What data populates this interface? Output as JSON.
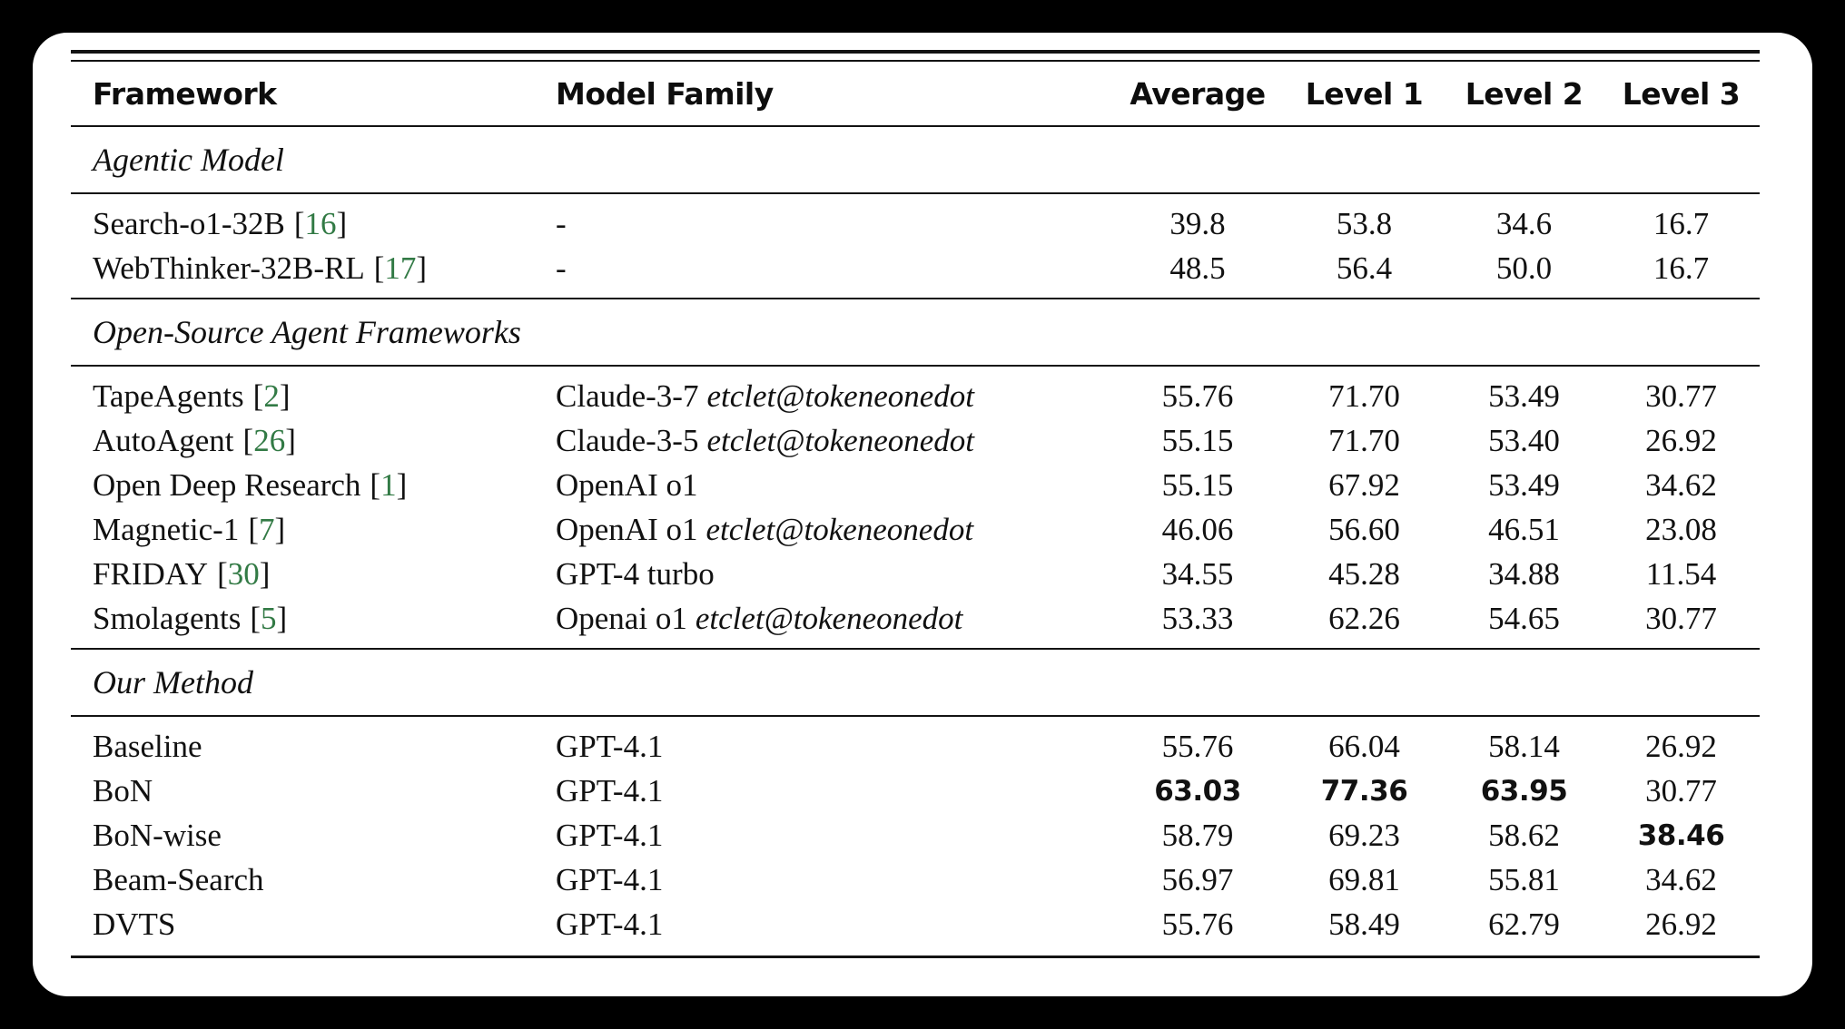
{
  "page": {
    "background_color": "#000000",
    "card_color": "#ffffff",
    "text_color": "#111111",
    "citation_color": "#327a45"
  },
  "table": {
    "headers": [
      "Framework",
      "Model Family",
      "Average",
      "Level 1",
      "Level 2",
      "Level 3"
    ],
    "sections": [
      {
        "title": "Agentic Model",
        "rows": [
          {
            "framework": "Search-o1-32B",
            "cite": "16",
            "model": "-",
            "values": [
              "39.8",
              "53.8",
              "34.6",
              "16.7"
            ],
            "bold": []
          },
          {
            "framework": "WebThinker-32B-RL",
            "cite": "17",
            "model": "-",
            "values": [
              "48.5",
              "56.4",
              "50.0",
              "16.7"
            ],
            "bold": []
          }
        ]
      },
      {
        "title": "Open-Source Agent Frameworks",
        "rows": [
          {
            "framework": "TapeAgents",
            "cite": "2",
            "model": "Claude-3-7",
            "model_suffix": "etclet@tokeneonedot",
            "values": [
              "55.76",
              "71.70",
              "53.49",
              "30.77"
            ],
            "bold": []
          },
          {
            "framework": "AutoAgent",
            "cite": "26",
            "model": "Claude-3-5",
            "model_suffix": "etclet@tokeneonedot",
            "values": [
              "55.15",
              "71.70",
              "53.40",
              "26.92"
            ],
            "bold": []
          },
          {
            "framework": "Open Deep Research",
            "cite": "1",
            "model": "OpenAI o1",
            "values": [
              "55.15",
              "67.92",
              "53.49",
              "34.62"
            ],
            "bold": []
          },
          {
            "framework": "Magnetic-1",
            "cite": "7",
            "model": "OpenAI o1",
            "model_suffix": "etclet@tokeneonedot",
            "values": [
              "46.06",
              "56.60",
              "46.51",
              "23.08"
            ],
            "bold": []
          },
          {
            "framework": "FRIDAY",
            "cite": "30",
            "model": "GPT-4 turbo",
            "values": [
              "34.55",
              "45.28",
              "34.88",
              "11.54"
            ],
            "bold": []
          },
          {
            "framework": "Smolagents",
            "cite": "5",
            "model": "Openai o1",
            "model_suffix": "etclet@tokeneonedot",
            "values": [
              "53.33",
              "62.26",
              "54.65",
              "30.77"
            ],
            "bold": []
          }
        ]
      },
      {
        "title": "Our Method",
        "rows": [
          {
            "framework": "Baseline",
            "model": "GPT-4.1",
            "values": [
              "55.76",
              "66.04",
              "58.14",
              "26.92"
            ],
            "bold": []
          },
          {
            "framework": "BoN",
            "model": "GPT-4.1",
            "values": [
              "63.03",
              "77.36",
              "63.95",
              "30.77"
            ],
            "bold": [
              0,
              1,
              2
            ]
          },
          {
            "framework": "BoN-wise",
            "model": "GPT-4.1",
            "values": [
              "58.79",
              "69.23",
              "58.62",
              "38.46"
            ],
            "bold": [
              3
            ]
          },
          {
            "framework": "Beam-Search",
            "model": "GPT-4.1",
            "values": [
              "56.97",
              "69.81",
              "55.81",
              "34.62"
            ],
            "bold": []
          },
          {
            "framework": "DVTS",
            "model": "GPT-4.1",
            "values": [
              "55.76",
              "58.49",
              "62.79",
              "26.92"
            ],
            "bold": []
          }
        ]
      }
    ]
  }
}
